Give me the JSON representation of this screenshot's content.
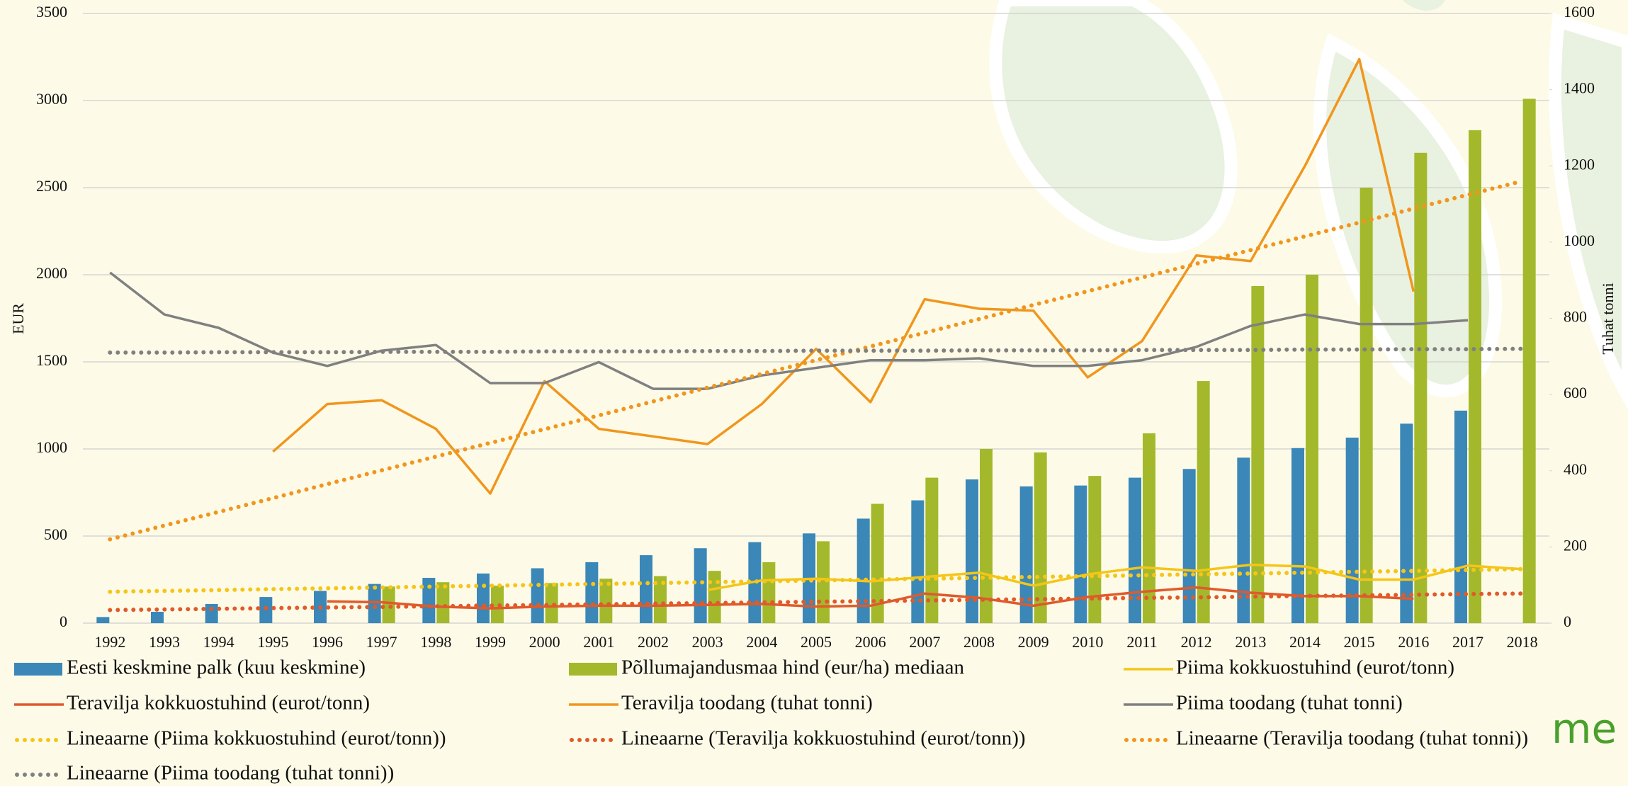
{
  "chart_data": {
    "type": "combo",
    "y_label": "EUR",
    "y2_label": "Tuhat tonni",
    "logo_text": "me",
    "categories": [
      "1992",
      "1993",
      "1994",
      "1995",
      "1996",
      "1997",
      "1998",
      "1999",
      "2000",
      "2001",
      "2002",
      "2003",
      "2004",
      "2005",
      "2006",
      "2007",
      "2008",
      "2009",
      "2010",
      "2011",
      "2012",
      "2013",
      "2014",
      "2015",
      "2016",
      "2017",
      "2018"
    ],
    "ylim": [
      0,
      3500
    ],
    "yticks": [
      0,
      500,
      1000,
      1500,
      2000,
      2500,
      3000,
      3500
    ],
    "y2lim": [
      0,
      1600
    ],
    "y2ticks": [
      0,
      200,
      400,
      600,
      800,
      1000,
      1200,
      1400,
      1600
    ],
    "grid": true,
    "legend": "bottom",
    "series": [
      {
        "name": "Eesti keskmine palk (kuu keskmine)",
        "type": "bar",
        "color": "#3a87b8",
        "values": [
          35,
          65,
          110,
          150,
          185,
          225,
          260,
          285,
          315,
          350,
          390,
          430,
          465,
          515,
          600,
          705,
          825,
          785,
          790,
          835,
          885,
          950,
          1005,
          1065,
          1145,
          1220,
          null
        ]
      },
      {
        "name": "Põllumajandusmaa hind (eur/ha) mediaan",
        "type": "bar",
        "color": "#a3b92b",
        "values": [
          null,
          null,
          null,
          null,
          null,
          210,
          235,
          215,
          230,
          255,
          270,
          300,
          350,
          470,
          685,
          835,
          1000,
          980,
          845,
          1090,
          1390,
          1935,
          2000,
          2500,
          2700,
          2830,
          3010
        ]
      },
      {
        "name": "Piima kokkuostuhind (eurot/tonn)",
        "type": "line",
        "style": "solid",
        "color": "#f5c518",
        "values": [
          null,
          null,
          null,
          null,
          null,
          null,
          null,
          null,
          null,
          null,
          null,
          190,
          245,
          255,
          240,
          265,
          290,
          215,
          280,
          320,
          300,
          335,
          325,
          250,
          250,
          330,
          310
        ]
      },
      {
        "name": "Teravilja kokkuostuhind (eurot/tonn)",
        "type": "line",
        "style": "solid",
        "color": "#e05a2b",
        "values": [
          null,
          null,
          null,
          null,
          125,
          120,
          95,
          85,
          95,
          100,
          100,
          105,
          110,
          95,
          100,
          170,
          145,
          100,
          150,
          180,
          205,
          175,
          155,
          155,
          140,
          null,
          null
        ]
      },
      {
        "name": "Teravilja toodang (tuhat tonni)",
        "type": "line",
        "style": "solid",
        "color": "#f0961e",
        "axis": "y2",
        "values": [
          null,
          null,
          null,
          450,
          575,
          585,
          510,
          340,
          635,
          510,
          490,
          470,
          575,
          720,
          580,
          850,
          825,
          820,
          645,
          740,
          965,
          950,
          1200,
          1480,
          870,
          null,
          null
        ]
      },
      {
        "name": "Piima toodang (tuhat tonni)",
        "type": "line",
        "style": "solid",
        "color": "#808080",
        "axis": "y2",
        "values": [
          920,
          810,
          775,
          710,
          675,
          715,
          730,
          630,
          630,
          685,
          615,
          615,
          650,
          670,
          690,
          690,
          695,
          675,
          675,
          690,
          725,
          780,
          810,
          785,
          785,
          795,
          null
        ]
      },
      {
        "name": "Lineaarne (Piima kokkuostuhind (eurot/tonn))",
        "type": "line",
        "style": "dotted",
        "color": "#f5c518",
        "values": [
          180,
          185,
          190,
          195,
          200,
          205,
          210,
          215,
          220,
          225,
          230,
          235,
          240,
          245,
          250,
          255,
          260,
          265,
          270,
          275,
          280,
          285,
          290,
          295,
          300,
          305,
          310
        ]
      },
      {
        "name": "Lineaarne (Teravilja kokkuostuhind (eurot/tonn))",
        "type": "line",
        "style": "dotted",
        "color": "#e05a2b",
        "values": [
          75,
          79,
          82,
          86,
          90,
          93,
          97,
          101,
          104,
          108,
          112,
          115,
          119,
          123,
          126,
          130,
          134,
          137,
          141,
          145,
          148,
          152,
          156,
          159,
          163,
          167,
          170
        ]
      },
      {
        "name": "Lineaarne (Teravilja toodang (tuhat tonni))",
        "type": "line",
        "style": "dotted",
        "color": "#f0961e",
        "axis": "y2",
        "values": [
          220,
          256,
          292,
          328,
          365,
          401,
          437,
          473,
          509,
          545,
          582,
          618,
          654,
          690,
          726,
          762,
          798,
          835,
          871,
          907,
          943,
          979,
          1015,
          1051,
          1088,
          1124,
          1160
        ]
      },
      {
        "name": "Lineaarne (Piima toodang (tuhat tonni))",
        "type": "line",
        "style": "dotted",
        "color": "#808080",
        "axis": "y2",
        "values": [
          710,
          710,
          711,
          711,
          711,
          712,
          712,
          712,
          713,
          713,
          713,
          714,
          714,
          715,
          715,
          715,
          716,
          716,
          716,
          717,
          717,
          717,
          718,
          718,
          719,
          719,
          720
        ]
      }
    ]
  }
}
